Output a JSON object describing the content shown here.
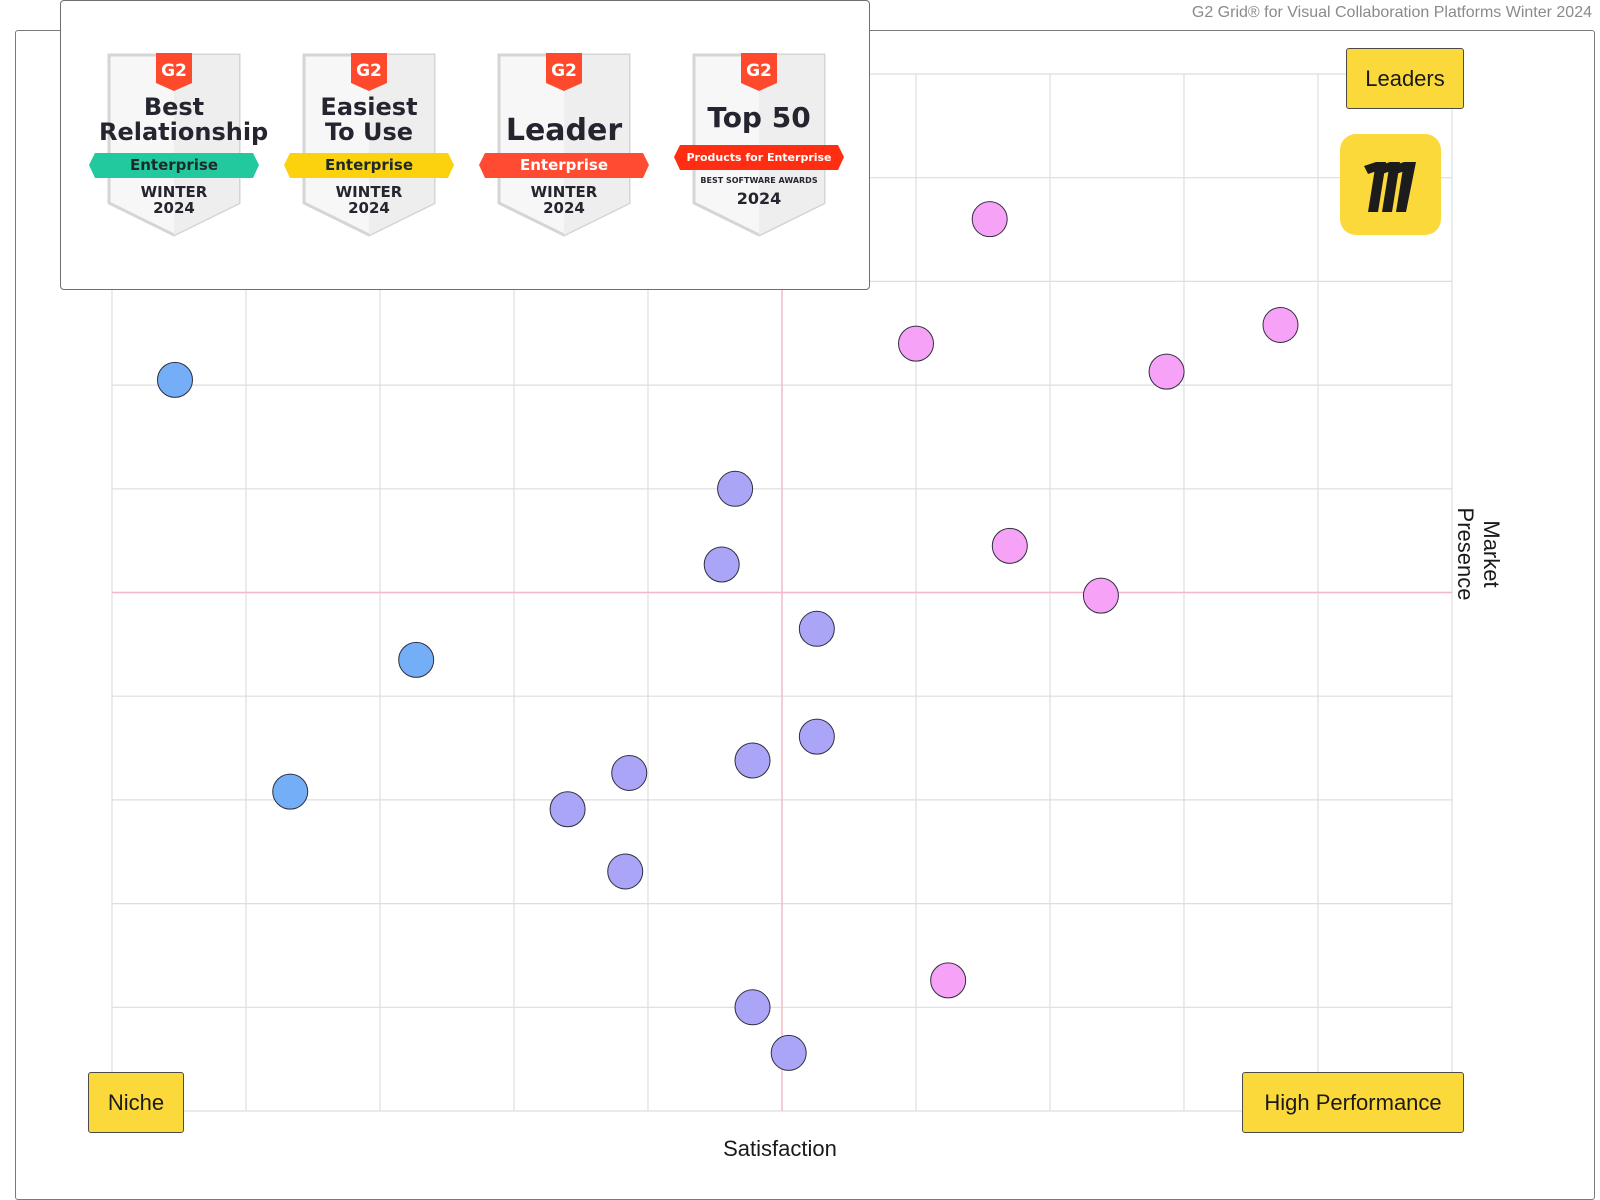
{
  "caption": "G2 Grid® for Visual Collaboration Platforms Winter 2024",
  "quadrants": {
    "leaders": "Leaders",
    "niche": "Niche",
    "high_performance": "High Performance"
  },
  "badges": [
    {
      "title_lines": [
        "Best",
        "Relationship"
      ],
      "ribbon": "Enterprise",
      "ribbon_color": "#22c99e",
      "ribbon_text_color": "#1e2a2a",
      "season": [
        "WINTER",
        "2024"
      ],
      "small": ""
    },
    {
      "title_lines": [
        "Easiest",
        "To Use"
      ],
      "ribbon": "Enterprise",
      "ribbon_color": "#fcd20f",
      "ribbon_text_color": "#1e2a2a",
      "season": [
        "WINTER",
        "2024"
      ],
      "small": ""
    },
    {
      "title_lines": [
        "Leader"
      ],
      "ribbon": "Enterprise",
      "ribbon_color": "#ff4b31",
      "ribbon_text_color": "#ffffff",
      "season": [
        "WINTER",
        "2024"
      ],
      "small": ""
    },
    {
      "title_lines": [
        "Top 50"
      ],
      "ribbon": "Products for Enterprise",
      "ribbon_color": "#ff2e12",
      "ribbon_text_color": "#ffffff",
      "season": [
        "2024"
      ],
      "small": "BEST SOFTWARE AWARDS"
    }
  ],
  "badge_mark": "G2",
  "colors": {
    "accent_yellow": "#fcd93a",
    "g2_red": "#ff492c",
    "leaders_dot": "#f6a2f6",
    "contenders_dot": "#aaa5f6",
    "niche_dot": "#74aef7",
    "grid": "#dedede",
    "midline": "#f6b8c8"
  },
  "highlighted_product_icon": "miro-logo-icon",
  "chart_data": {
    "type": "scatter",
    "title": "",
    "xlabel": "Satisfaction",
    "ylabel": "Market Presence",
    "xlim": [
      0,
      10
    ],
    "ylim": [
      0,
      10
    ],
    "midlines": {
      "x": 5,
      "y": 5
    },
    "grid": true,
    "series": [
      {
        "color": "#f6a2f6",
        "points": [
          [
            6.55,
            8.6
          ],
          [
            6.0,
            7.4
          ],
          [
            7.87,
            7.13
          ],
          [
            8.72,
            7.58
          ],
          [
            6.7,
            5.45
          ],
          [
            7.38,
            4.97
          ],
          [
            6.24,
            1.26
          ]
        ]
      },
      {
        "color": "#aaa5f6",
        "points": [
          [
            4.65,
            6.0
          ],
          [
            4.55,
            5.27
          ],
          [
            5.26,
            4.65
          ],
          [
            5.26,
            3.61
          ],
          [
            4.78,
            3.38
          ],
          [
            3.86,
            3.26
          ],
          [
            3.4,
            2.91
          ],
          [
            3.83,
            2.31
          ],
          [
            4.78,
            1.0
          ],
          [
            5.05,
            0.56
          ]
        ]
      },
      {
        "color": "#74aef7",
        "points": [
          [
            0.47,
            7.05
          ],
          [
            2.27,
            4.35
          ],
          [
            1.33,
            3.08
          ]
        ]
      }
    ]
  }
}
